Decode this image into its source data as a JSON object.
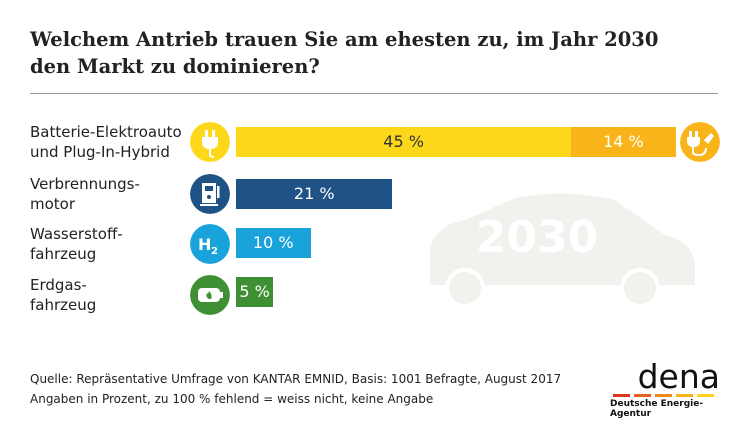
{
  "title_line1": "Welchem Antrieb trauen Sie am ehesten zu, im Jahr 2030",
  "title_line2": "den Markt zu dominieren?",
  "watermark": "2030",
  "chart_data": {
    "type": "bar",
    "orientation": "horizontal",
    "stacked": true,
    "categories": [
      {
        "line1": "Batterie-Elektroauto",
        "line2": "und Plug-In-Hybrid",
        "icon": "plug-icon"
      },
      {
        "line1": "Verbrennungs-",
        "line2": "motor",
        "icon": "fuel-pump-icon"
      },
      {
        "line1": "Wasserstoff-",
        "line2": "fahrzeug",
        "icon": "h2-icon"
      },
      {
        "line1": "Erdgas-",
        "line2": "fahrzeug",
        "icon": "gas-tank-icon"
      }
    ],
    "series": [
      {
        "values": [
          45,
          21,
          10,
          5
        ],
        "labels": [
          "45 %",
          "21 %",
          "10 %",
          "5 %"
        ],
        "colors": [
          "#fdd81a",
          "#1f5285",
          "#1aa3db",
          "#3f8f35"
        ]
      },
      {
        "values": [
          14,
          null,
          null,
          null
        ],
        "labels": [
          "14 %"
        ],
        "colors": [
          "#f8b419"
        ]
      }
    ],
    "unit": "%"
  },
  "footer": {
    "source": "Quelle: Repräsentative Umfrage von KANTAR EMNID, Basis: 1001 Befragte, August 2017",
    "note": "Angaben in Prozent, zu 100 % fehlend = weiss nicht, keine Angabe"
  },
  "logo": {
    "name": "dena",
    "subtitle": "Deutsche Energie-Agentur"
  }
}
